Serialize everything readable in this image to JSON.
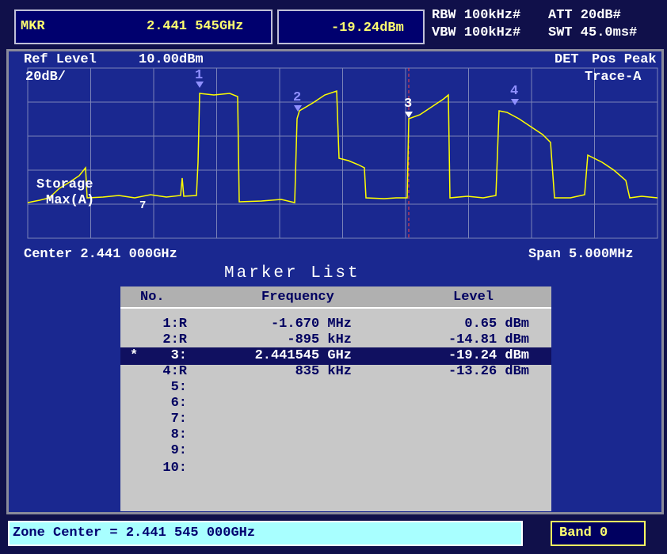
{
  "header": {
    "mkr_label": "MKR",
    "mkr_freq": "2.441 545GHz",
    "mkr_level": "-19.24dBm",
    "rbw": "RBW 100kHz#",
    "att": "ATT 20dB#",
    "vbw": "VBW 100kHz#",
    "swt": "SWT 45.0ms#"
  },
  "display": {
    "ref_label": "Ref Level",
    "ref_value": "10.00dBm",
    "det_label": "DET",
    "det_value": "Pos Peak",
    "scale": "20dB/",
    "trace": "Trace-A",
    "storage": "Storage",
    "storage_mode": "Max(A)",
    "stray": "7",
    "markers": [
      "1",
      "2",
      "3",
      "4"
    ],
    "center": "Center 2.441 000GHz",
    "span": "Span 5.000MHz"
  },
  "marker_list": {
    "title": "Marker List",
    "columns": [
      "No.",
      "Frequency",
      "Level"
    ],
    "rows": [
      {
        "no": "1:R",
        "freq": "-1.670 MHz",
        "level": "0.65 dBm"
      },
      {
        "no": "2:R",
        "freq": "-895 kHz",
        "level": "-14.81 dBm"
      },
      {
        "sel": "*",
        "no": "3:",
        "freq": "2.441545 GHz",
        "level": "-19.24 dBm"
      },
      {
        "no": "4:R",
        "freq": "835 kHz",
        "level": "-13.26 dBm"
      },
      {
        "no": "5:"
      },
      {
        "no": "6:"
      },
      {
        "no": "7:"
      },
      {
        "no": "8:"
      },
      {
        "no": "9:"
      },
      {
        "no": "10:"
      }
    ]
  },
  "footer": {
    "zone": "Zone Center = 2.441 545 000GHz",
    "band": "Band 0"
  }
}
